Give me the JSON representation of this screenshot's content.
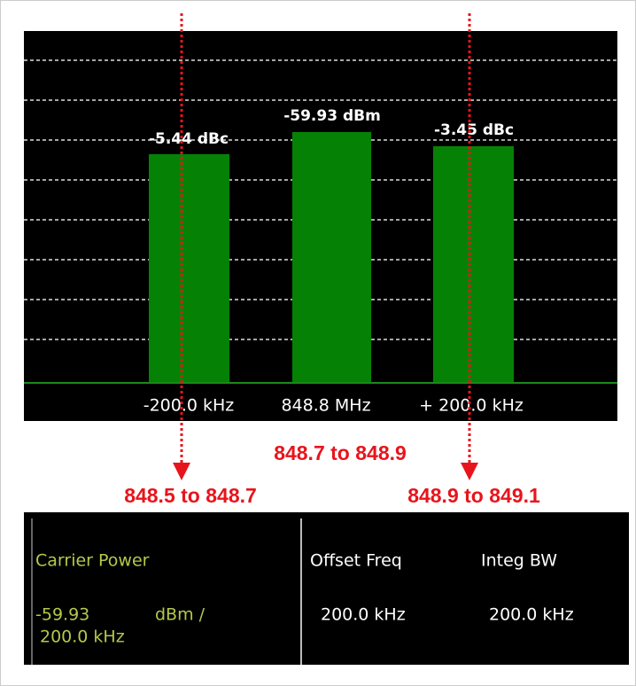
{
  "display": {
    "bars": [
      {
        "label": "-5.44 dBc"
      },
      {
        "label": "-59.93 dBm"
      },
      {
        "label": "-3.45 dBc"
      }
    ],
    "axis_labels": [
      "-200.0 kHz",
      "848.8 MHz",
      "+ 200.0 kHz"
    ]
  },
  "annotations": [
    "848.7 to 848.9",
    "848.5 to 848.7",
    "848.9 to 849.1"
  ],
  "table": {
    "carrier_power": {
      "header": "Carrier Power",
      "value": "-59.93",
      "unit": "dBm /",
      "bandwidth": "200.0 kHz"
    },
    "columns": [
      {
        "header": "Offset Freq",
        "value": "200.0 kHz"
      },
      {
        "header": "Integ BW",
        "value": "200.0 kHz"
      }
    ]
  }
}
